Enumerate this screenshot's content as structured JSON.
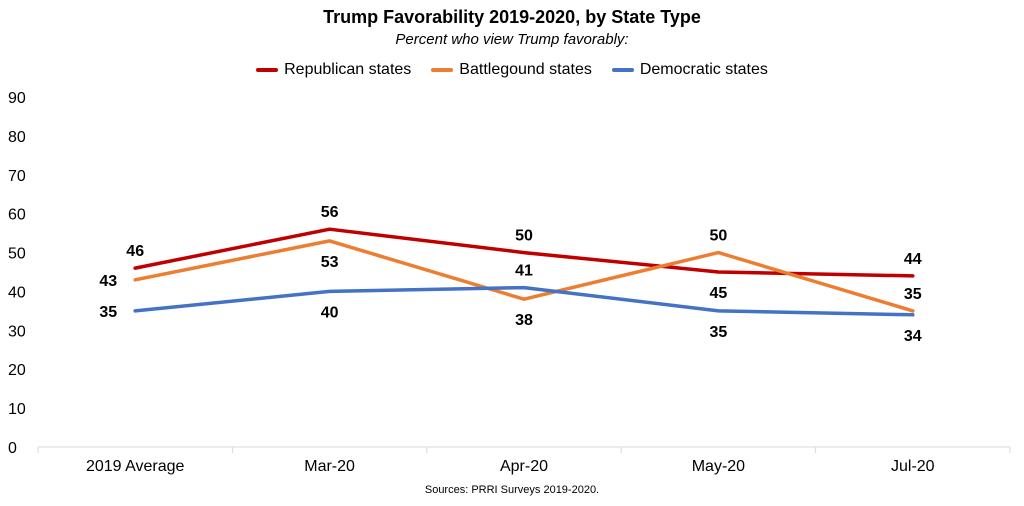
{
  "header": {
    "title": "Trump Favorability 2019-2020, by State Type",
    "subtitle": "Percent who view Trump favorably:"
  },
  "footer": {
    "source": "Sources: PRRI Surveys 2019-2020."
  },
  "chart_data": {
    "type": "line",
    "title": "Trump Favorability 2019-2020, by State Type",
    "subtitle": "Percent who view Trump favorably:",
    "categories": [
      "2019 Average",
      "Mar-20",
      "Apr-20",
      "May-20",
      "Jul-20"
    ],
    "ylim": [
      0,
      90
    ],
    "yticks": [
      0,
      10,
      20,
      30,
      40,
      50,
      60,
      70,
      80,
      90
    ],
    "grid": false,
    "legend": "top-center",
    "series": [
      {
        "name": "Republican states",
        "color": "#C00000",
        "values": [
          46,
          56,
          50,
          45,
          44
        ]
      },
      {
        "name": "Battlegound states",
        "color": "#ED7D31",
        "values": [
          43,
          53,
          38,
          50,
          35
        ]
      },
      {
        "name": "Democratic states",
        "color": "#4472C4",
        "values": [
          35,
          40,
          41,
          35,
          34
        ]
      }
    ],
    "data_labels": [
      {
        "text": "46",
        "series": 0,
        "index": 0,
        "pos": "above"
      },
      {
        "text": "56",
        "series": 0,
        "index": 1,
        "pos": "above"
      },
      {
        "text": "50",
        "series": 0,
        "index": 2,
        "pos": "above"
      },
      {
        "text": "45",
        "series": 0,
        "index": 3,
        "pos": "below"
      },
      {
        "text": "44",
        "series": 0,
        "index": 4,
        "pos": "above"
      },
      {
        "text": "43",
        "series": 1,
        "index": 0,
        "pos": "left"
      },
      {
        "text": "53",
        "series": 1,
        "index": 1,
        "pos": "below"
      },
      {
        "text": "38",
        "series": 1,
        "index": 2,
        "pos": "below"
      },
      {
        "text": "50",
        "series": 1,
        "index": 3,
        "pos": "above"
      },
      {
        "text": "35",
        "series": 1,
        "index": 4,
        "pos": "above"
      },
      {
        "text": "35",
        "series": 2,
        "index": 0,
        "pos": "left"
      },
      {
        "text": "40",
        "series": 2,
        "index": 1,
        "pos": "below"
      },
      {
        "text": "41",
        "series": 2,
        "index": 2,
        "pos": "above"
      },
      {
        "text": "35",
        "series": 2,
        "index": 3,
        "pos": "below"
      },
      {
        "text": "34",
        "series": 2,
        "index": 4,
        "pos": "below"
      }
    ]
  }
}
